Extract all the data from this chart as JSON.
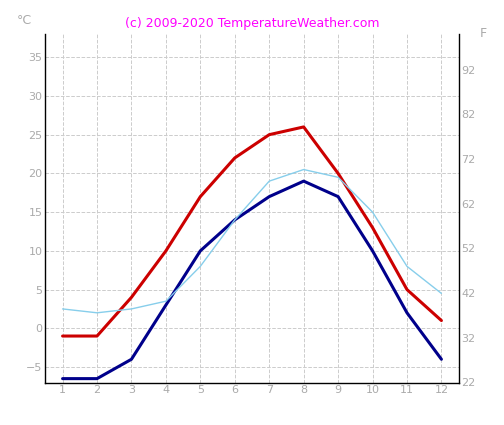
{
  "months": [
    1,
    2,
    3,
    4,
    5,
    6,
    7,
    8,
    9,
    10,
    11,
    12
  ],
  "air_temp": [
    -1,
    -1,
    4,
    10,
    17,
    22,
    25,
    26,
    20,
    13,
    5,
    1
  ],
  "water_temp": [
    -6.5,
    -6.5,
    -4,
    3,
    10,
    14,
    17,
    19,
    17,
    10,
    2,
    -4
  ],
  "sea_temp": [
    2.5,
    2,
    2.5,
    3.5,
    8,
    14,
    19,
    20.5,
    19.5,
    15,
    8,
    4.5
  ],
  "air_color": "#cc0000",
  "water_color": "#00008b",
  "sea_color": "#87ceeb",
  "title": "(c) 2009-2020 TemperatureWeather.com",
  "title_color": "#ff00ff",
  "ylabel_left": "°C",
  "ylabel_right": "F",
  "ylim_left": [
    -7,
    38
  ],
  "ylim_right": [
    22,
    100
  ],
  "yticks_left": [
    -5,
    0,
    5,
    10,
    15,
    20,
    25,
    30,
    35
  ],
  "yticks_right": [
    22,
    32,
    42,
    52,
    62,
    72,
    82,
    92
  ],
  "xlim": [
    0.5,
    12.5
  ],
  "xticks": [
    1,
    2,
    3,
    4,
    5,
    6,
    7,
    8,
    9,
    10,
    11,
    12
  ],
  "tick_color": "#aaaaaa",
  "grid_color": "#cccccc",
  "bg_color": "#ffffff",
  "title_fontsize": 9,
  "label_fontsize": 9,
  "tick_fontsize": 8,
  "linewidth_air": 2.2,
  "linewidth_water": 2.2,
  "linewidth_sea": 1.0
}
